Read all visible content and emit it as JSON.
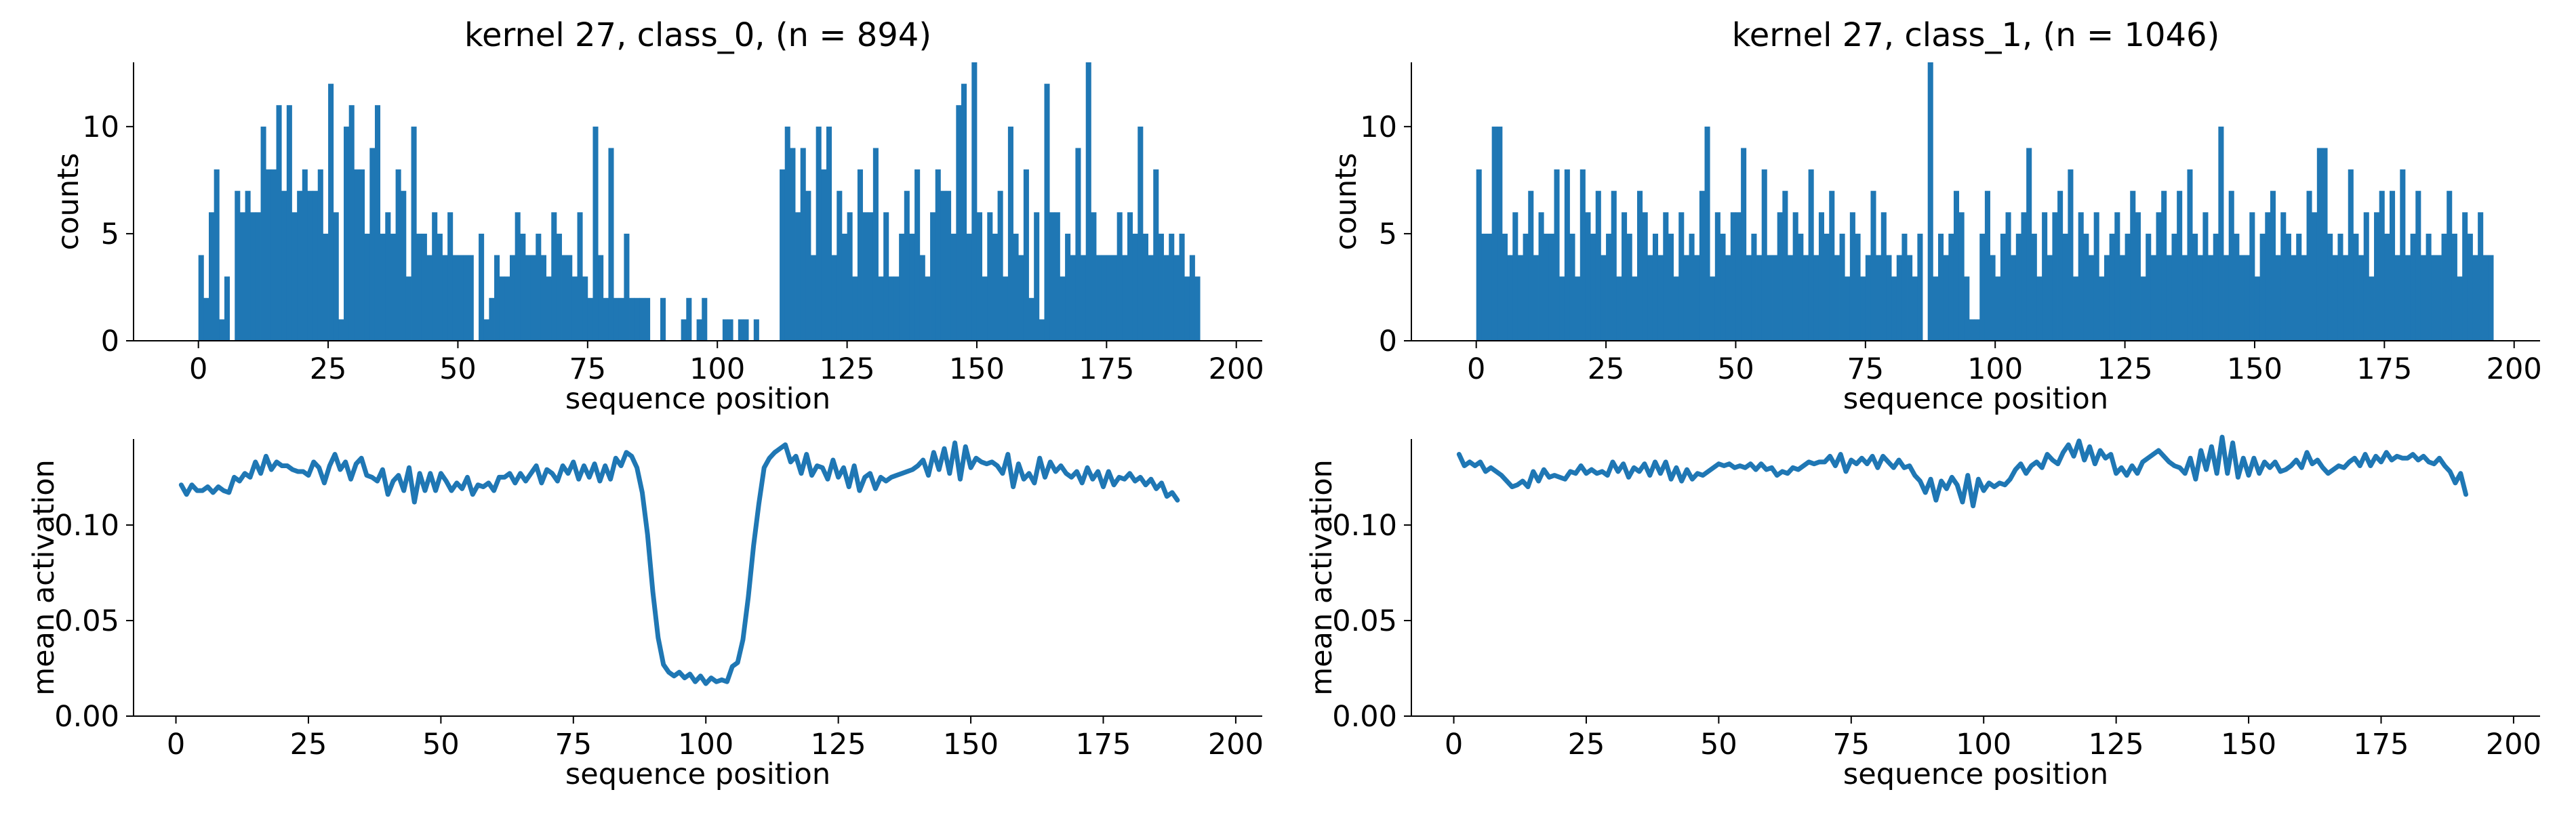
{
  "figure": {
    "background": "#ffffff",
    "series_color": "#1f77b4"
  },
  "chart_data": [
    {
      "type": "bar",
      "title": "kernel 27, class_0, (n = 894)",
      "xlabel": "sequence position",
      "ylabel": "counts",
      "xlim": [
        -12.5,
        205
      ],
      "ylim": [
        0,
        13
      ],
      "xticks": [
        0,
        25,
        50,
        75,
        100,
        125,
        150,
        175,
        200
      ],
      "yticks": [
        0,
        5,
        10
      ],
      "grid": false,
      "x_start": 0,
      "bin_width": 1,
      "values": [
        4,
        2,
        6,
        8,
        1,
        3,
        0,
        7,
        6,
        7,
        6,
        6,
        10,
        8,
        8,
        11,
        7,
        11,
        6,
        7,
        8,
        7,
        7,
        8,
        5,
        12,
        6,
        1,
        10,
        11,
        8,
        8,
        5,
        9,
        11,
        5,
        6,
        5,
        8,
        7,
        3,
        10,
        5,
        5,
        4,
        6,
        5,
        4,
        6,
        4,
        4,
        4,
        4,
        0,
        5,
        1,
        2,
        4,
        3,
        3,
        4,
        6,
        5,
        4,
        4,
        5,
        4,
        3,
        6,
        5,
        4,
        4,
        3,
        6,
        3,
        2,
        10,
        4,
        2,
        9,
        2,
        2,
        5,
        2,
        2,
        2,
        2,
        0,
        0,
        2,
        0,
        0,
        0,
        1,
        2,
        0,
        1,
        2,
        0,
        0,
        0,
        1,
        1,
        0,
        1,
        1,
        0,
        1,
        0,
        0,
        0,
        0,
        8,
        10,
        9,
        6,
        9,
        7,
        4,
        10,
        8,
        10,
        4,
        7,
        5,
        6,
        3,
        8,
        6,
        6,
        9,
        3,
        6,
        3,
        3,
        5,
        7,
        5,
        8,
        4,
        3,
        6,
        8,
        7,
        7,
        5,
        11,
        12,
        5,
        13,
        6,
        3,
        6,
        5,
        7,
        3,
        10,
        5,
        4,
        8,
        2,
        6,
        1,
        12,
        6,
        6,
        3,
        5,
        4,
        9,
        4,
        13,
        6,
        4,
        4,
        4,
        4,
        6,
        4,
        6,
        5,
        10,
        5,
        4,
        8,
        5,
        4,
        5,
        4,
        5,
        3,
        4,
        3
      ]
    },
    {
      "type": "bar",
      "title": "kernel 27, class_1, (n = 1046)",
      "xlabel": "sequence position",
      "ylabel": "counts",
      "xlim": [
        -12.5,
        205
      ],
      "ylim": [
        0,
        13
      ],
      "xticks": [
        0,
        25,
        50,
        75,
        100,
        125,
        150,
        175,
        200
      ],
      "yticks": [
        0,
        5,
        10
      ],
      "grid": false,
      "x_start": 0,
      "bin_width": 1,
      "values": [
        8,
        5,
        5,
        10,
        10,
        5,
        4,
        6,
        4,
        5,
        7,
        4,
        6,
        5,
        5,
        8,
        3,
        8,
        5,
        3,
        8,
        6,
        5,
        7,
        4,
        5,
        7,
        3,
        6,
        5,
        3,
        7,
        6,
        4,
        5,
        4,
        6,
        5,
        3,
        6,
        4,
        5,
        4,
        7,
        10,
        3,
        6,
        5,
        4,
        6,
        6,
        9,
        4,
        5,
        4,
        8,
        4,
        4,
        6,
        7,
        4,
        6,
        5,
        4,
        8,
        4,
        6,
        5,
        7,
        4,
        5,
        3,
        6,
        5,
        3,
        4,
        7,
        4,
        6,
        4,
        3,
        4,
        5,
        4,
        3,
        5,
        0,
        13,
        3,
        5,
        4,
        5,
        7,
        6,
        3,
        1,
        1,
        5,
        7,
        4,
        3,
        5,
        6,
        4,
        5,
        6,
        9,
        5,
        3,
        6,
        4,
        6,
        7,
        5,
        8,
        3,
        6,
        5,
        4,
        6,
        3,
        4,
        5,
        6,
        4,
        5,
        7,
        6,
        3,
        5,
        4,
        6,
        7,
        4,
        5,
        7,
        4,
        8,
        5,
        4,
        6,
        4,
        5,
        10,
        4,
        7,
        5,
        4,
        4,
        6,
        3,
        5,
        6,
        7,
        4,
        6,
        5,
        4,
        5,
        4,
        7,
        6,
        9,
        9,
        5,
        4,
        5,
        4,
        8,
        5,
        4,
        6,
        3,
        6,
        7,
        5,
        7,
        4,
        8,
        4,
        5,
        7,
        4,
        5,
        4,
        4,
        5,
        7,
        5,
        3,
        6,
        5,
        4,
        6,
        4,
        4
      ]
    },
    {
      "type": "line",
      "title": "",
      "xlabel": "sequence position",
      "ylabel": "mean activation",
      "xlim": [
        -8,
        205
      ],
      "ylim": [
        0,
        0.145
      ],
      "xticks": [
        0,
        25,
        50,
        75,
        100,
        125,
        150,
        175,
        200
      ],
      "yticks": [
        0.0,
        0.05,
        0.1
      ],
      "ytick_labels": [
        "0.00",
        "0.05",
        "0.10"
      ],
      "grid": false,
      "x_start": 1,
      "x_step": 1,
      "y": [
        0.121,
        0.116,
        0.121,
        0.118,
        0.118,
        0.12,
        0.117,
        0.12,
        0.118,
        0.117,
        0.125,
        0.123,
        0.127,
        0.125,
        0.133,
        0.127,
        0.136,
        0.129,
        0.133,
        0.131,
        0.131,
        0.129,
        0.128,
        0.128,
        0.126,
        0.133,
        0.13,
        0.122,
        0.131,
        0.137,
        0.129,
        0.133,
        0.124,
        0.132,
        0.135,
        0.126,
        0.125,
        0.123,
        0.129,
        0.116,
        0.123,
        0.126,
        0.118,
        0.13,
        0.112,
        0.127,
        0.118,
        0.127,
        0.118,
        0.127,
        0.123,
        0.118,
        0.122,
        0.119,
        0.125,
        0.116,
        0.121,
        0.12,
        0.122,
        0.118,
        0.125,
        0.125,
        0.127,
        0.122,
        0.127,
        0.123,
        0.127,
        0.131,
        0.122,
        0.129,
        0.127,
        0.123,
        0.131,
        0.127,
        0.133,
        0.124,
        0.131,
        0.125,
        0.132,
        0.123,
        0.131,
        0.124,
        0.135,
        0.131,
        0.138,
        0.136,
        0.13,
        0.117,
        0.095,
        0.065,
        0.041,
        0.027,
        0.023,
        0.021,
        0.023,
        0.02,
        0.022,
        0.018,
        0.021,
        0.017,
        0.02,
        0.018,
        0.019,
        0.018,
        0.026,
        0.028,
        0.04,
        0.062,
        0.089,
        0.111,
        0.13,
        0.135,
        0.138,
        0.14,
        0.142,
        0.133,
        0.136,
        0.127,
        0.137,
        0.126,
        0.131,
        0.13,
        0.124,
        0.134,
        0.125,
        0.13,
        0.12,
        0.131,
        0.118,
        0.125,
        0.127,
        0.119,
        0.125,
        0.123,
        0.125,
        0.126,
        0.127,
        0.128,
        0.129,
        0.131,
        0.134,
        0.126,
        0.138,
        0.129,
        0.14,
        0.127,
        0.143,
        0.124,
        0.141,
        0.13,
        0.135,
        0.133,
        0.132,
        0.133,
        0.131,
        0.127,
        0.137,
        0.12,
        0.132,
        0.124,
        0.127,
        0.122,
        0.135,
        0.125,
        0.133,
        0.128,
        0.131,
        0.127,
        0.125,
        0.128,
        0.122,
        0.13,
        0.124,
        0.128,
        0.12,
        0.128,
        0.121,
        0.125,
        0.124,
        0.127,
        0.123,
        0.125,
        0.121,
        0.124,
        0.119,
        0.122,
        0.115,
        0.117,
        0.113
      ]
    },
    {
      "type": "line",
      "title": "",
      "xlabel": "sequence position",
      "ylabel": "mean activation",
      "xlim": [
        -8,
        205
      ],
      "ylim": [
        0,
        0.145
      ],
      "xticks": [
        0,
        25,
        50,
        75,
        100,
        125,
        150,
        175,
        200
      ],
      "yticks": [
        0.0,
        0.05,
        0.1
      ],
      "ytick_labels": [
        "0.00",
        "0.05",
        "0.10"
      ],
      "grid": false,
      "x_start": 1,
      "x_step": 1,
      "y": [
        0.137,
        0.131,
        0.133,
        0.131,
        0.133,
        0.128,
        0.13,
        0.128,
        0.126,
        0.123,
        0.12,
        0.121,
        0.123,
        0.12,
        0.128,
        0.123,
        0.129,
        0.125,
        0.126,
        0.125,
        0.124,
        0.128,
        0.127,
        0.131,
        0.127,
        0.129,
        0.127,
        0.128,
        0.126,
        0.133,
        0.128,
        0.132,
        0.125,
        0.13,
        0.128,
        0.132,
        0.126,
        0.133,
        0.127,
        0.133,
        0.124,
        0.13,
        0.123,
        0.129,
        0.124,
        0.127,
        0.126,
        0.128,
        0.13,
        0.132,
        0.131,
        0.132,
        0.13,
        0.131,
        0.13,
        0.132,
        0.129,
        0.132,
        0.129,
        0.13,
        0.126,
        0.128,
        0.127,
        0.13,
        0.129,
        0.131,
        0.133,
        0.132,
        0.133,
        0.133,
        0.136,
        0.131,
        0.137,
        0.128,
        0.134,
        0.132,
        0.135,
        0.132,
        0.136,
        0.13,
        0.136,
        0.133,
        0.13,
        0.134,
        0.13,
        0.131,
        0.126,
        0.123,
        0.117,
        0.124,
        0.113,
        0.123,
        0.119,
        0.125,
        0.121,
        0.112,
        0.126,
        0.11,
        0.124,
        0.118,
        0.122,
        0.12,
        0.122,
        0.121,
        0.124,
        0.129,
        0.132,
        0.127,
        0.131,
        0.133,
        0.13,
        0.137,
        0.134,
        0.132,
        0.138,
        0.142,
        0.136,
        0.144,
        0.134,
        0.141,
        0.132,
        0.139,
        0.135,
        0.137,
        0.127,
        0.13,
        0.126,
        0.131,
        0.127,
        0.133,
        0.135,
        0.137,
        0.139,
        0.136,
        0.133,
        0.131,
        0.13,
        0.127,
        0.135,
        0.124,
        0.139,
        0.129,
        0.141,
        0.127,
        0.146,
        0.127,
        0.143,
        0.125,
        0.135,
        0.126,
        0.135,
        0.127,
        0.133,
        0.13,
        0.133,
        0.128,
        0.129,
        0.131,
        0.134,
        0.13,
        0.138,
        0.132,
        0.134,
        0.13,
        0.127,
        0.129,
        0.131,
        0.13,
        0.133,
        0.135,
        0.131,
        0.137,
        0.131,
        0.136,
        0.133,
        0.138,
        0.134,
        0.136,
        0.135,
        0.135,
        0.137,
        0.134,
        0.136,
        0.133,
        0.132,
        0.135,
        0.131,
        0.128,
        0.122,
        0.127,
        0.116
      ]
    }
  ]
}
